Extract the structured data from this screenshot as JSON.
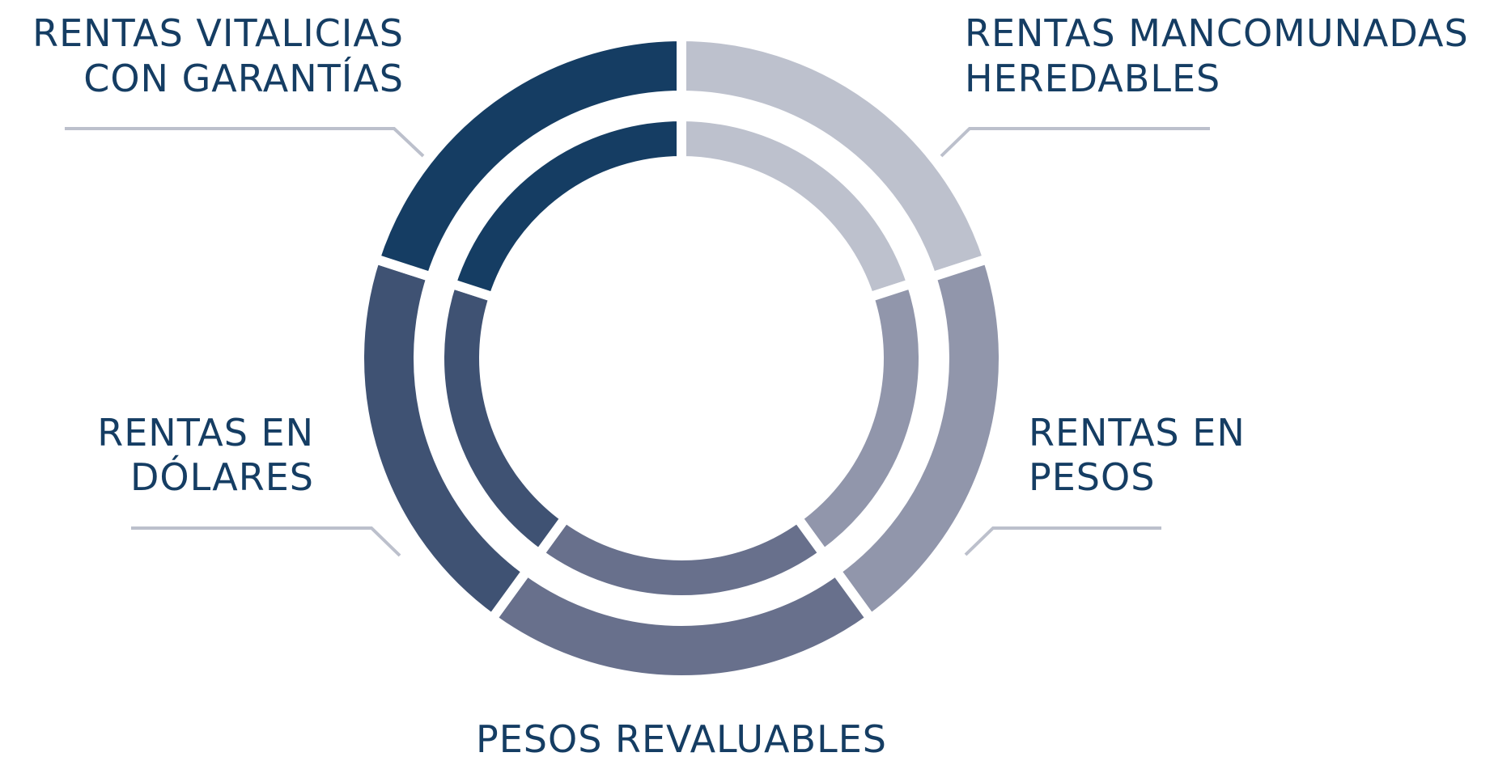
{
  "segments": [
    {
      "label": [
        "RENTAS MANCOMUNADAS",
        "HEREDABLES"
      ]
    },
    {
      "label": [
        "RENTAS EN",
        "PESOS"
      ]
    },
    {
      "label": [
        "PESOS REVALUABLES"
      ]
    },
    {
      "label": [
        "RENTAS EN",
        "DÓLARES"
      ]
    },
    {
      "label": [
        "RENTAS VITALICIAS",
        "CON GARANTÍAS"
      ]
    }
  ]
}
